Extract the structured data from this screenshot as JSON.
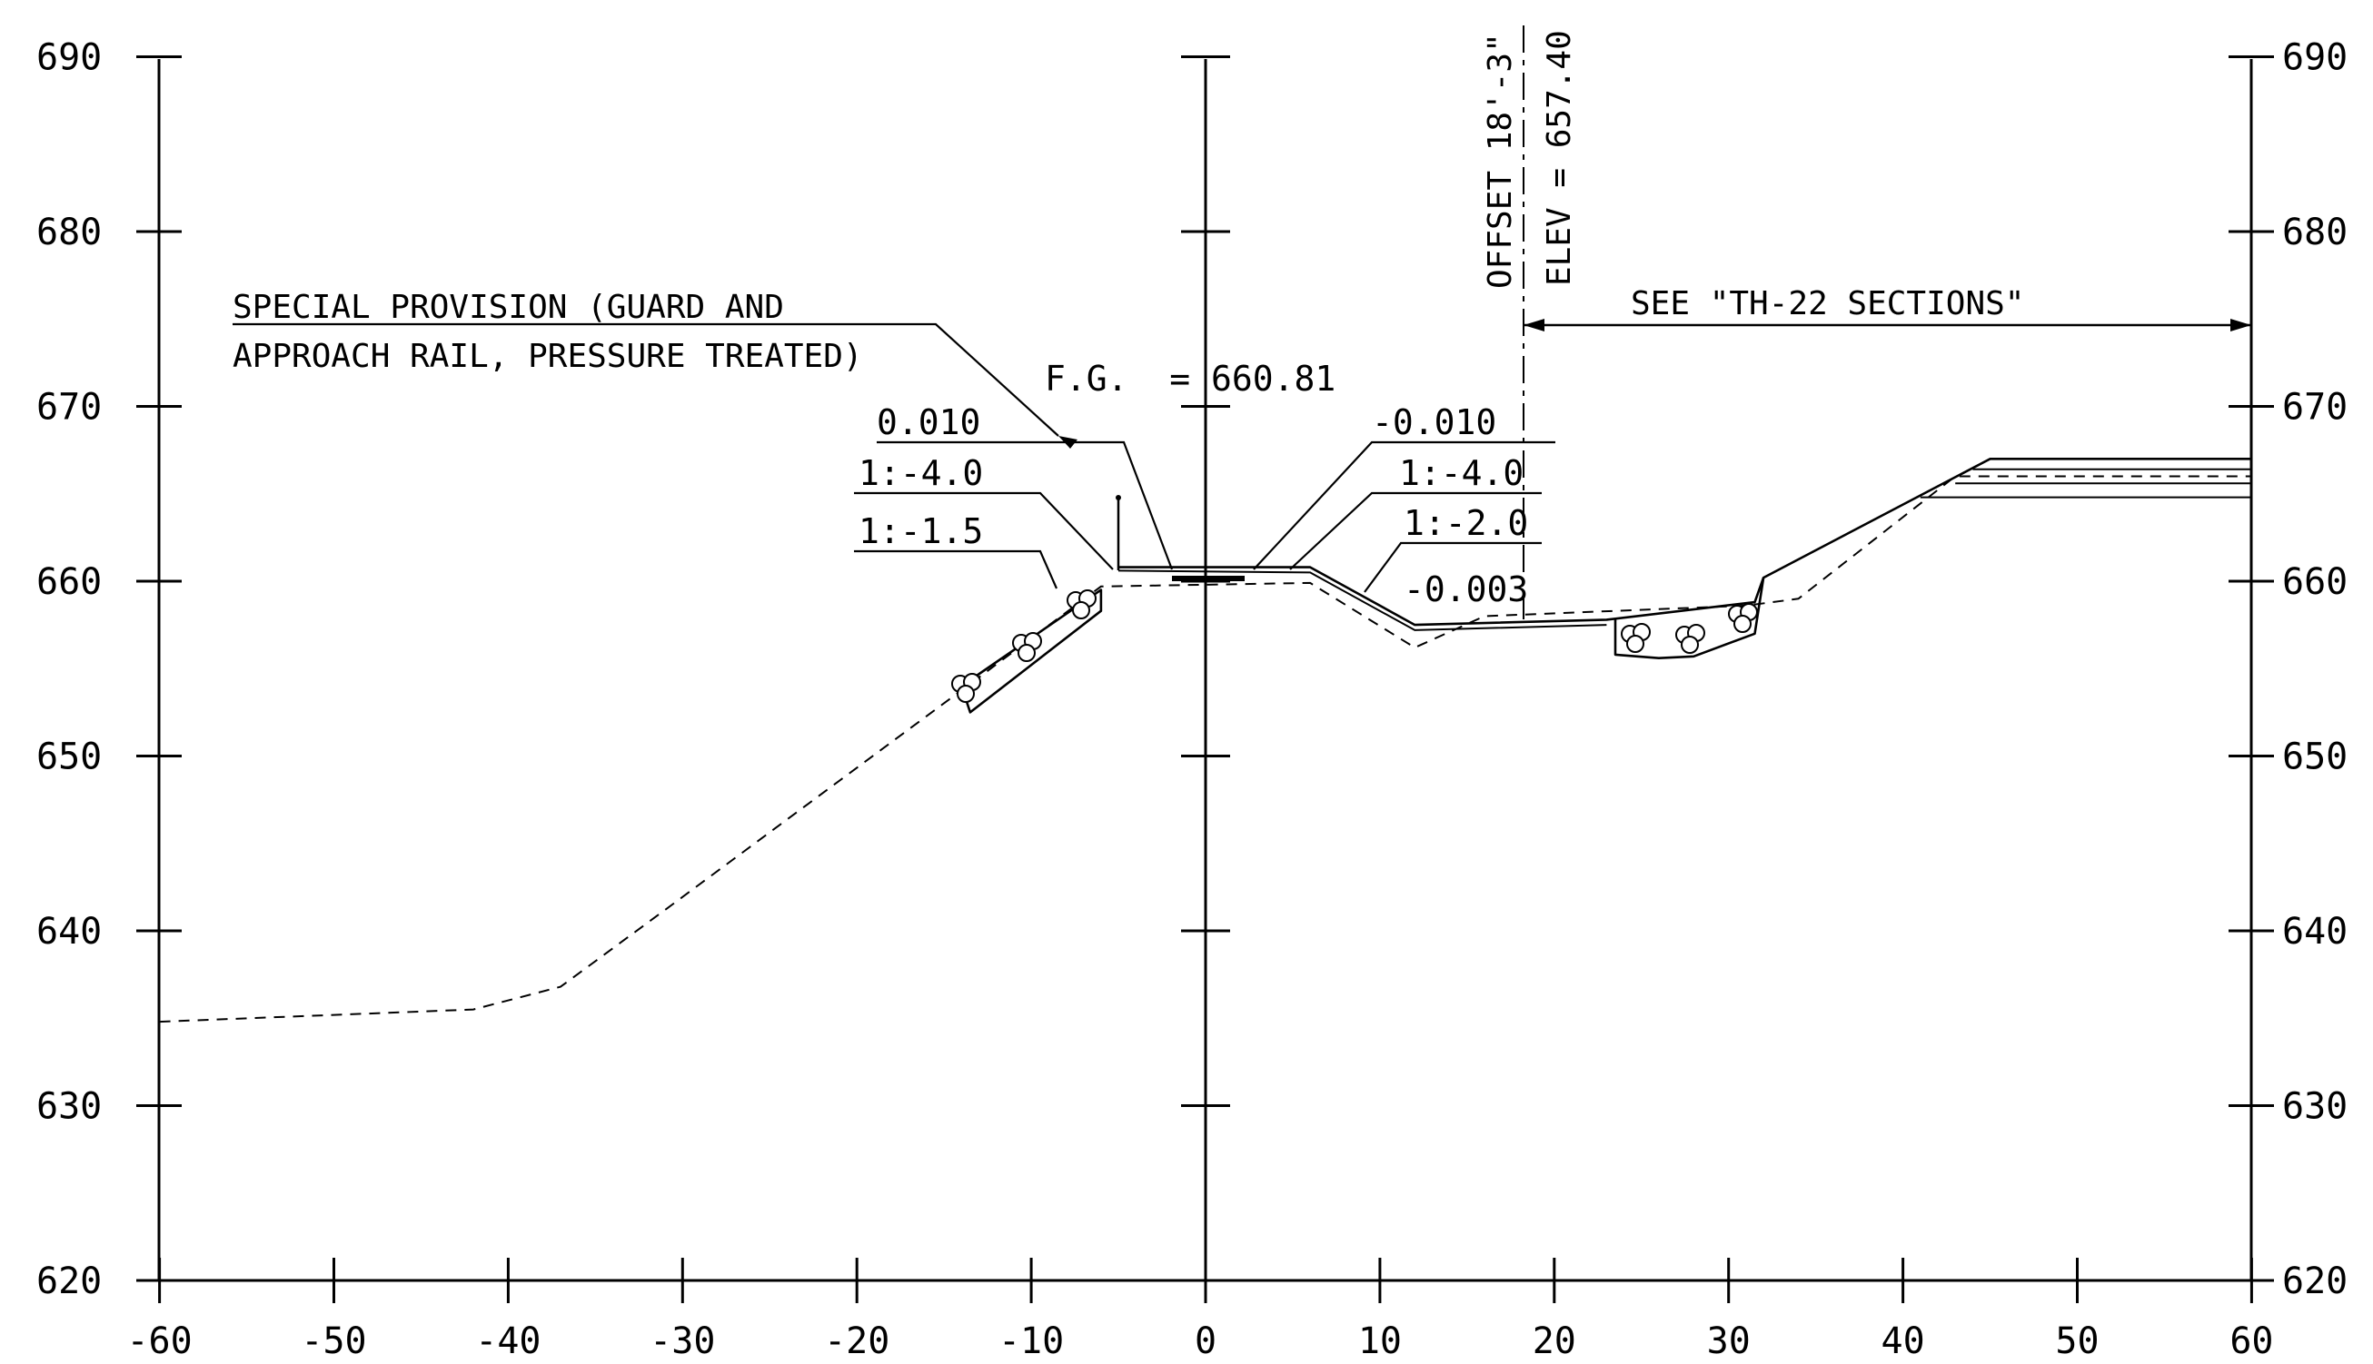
{
  "axes": {
    "x_ticks": [
      "-60",
      "-50",
      "-40",
      "-30",
      "-20",
      "-10",
      "0",
      "10",
      "20",
      "30",
      "40",
      "50",
      "60"
    ],
    "y_ticks": [
      "620",
      "630",
      "640",
      "650",
      "660",
      "670",
      "680",
      "690"
    ]
  },
  "labels": {
    "special_provision_1": "SPECIAL PROVISION (GUARD AND",
    "special_provision_2": "APPROACH RAIL, PRESSURE TREATED)",
    "fg": "F.G.  = 660.81",
    "left_slope_1": "0.010",
    "left_slope_2": "1:-4.0",
    "left_slope_3": "1:-1.5",
    "right_slope_1": "-0.010",
    "right_slope_2": "1:-4.0",
    "right_slope_3": "1:-2.0",
    "ditch_slope": "-0.003",
    "offset": "OFFSET 18'-3\"",
    "elev": "ELEV = 657.40",
    "see_sections": "SEE \"TH-22 SECTIONS\""
  },
  "profiles": {
    "existing_ground": [
      [
        -60,
        634.8
      ],
      [
        -42,
        635.5
      ],
      [
        -37,
        636.8
      ],
      [
        -31,
        641.2
      ],
      [
        -13,
        654.5
      ],
      [
        -6,
        659.7
      ],
      [
        6,
        659.9
      ],
      [
        12,
        656.2
      ],
      [
        16,
        658.0
      ],
      [
        31,
        658.6
      ],
      [
        34,
        659.0
      ],
      [
        43,
        666.0
      ],
      [
        60,
        666.0
      ]
    ],
    "finished_grade_top": [
      [
        -5,
        660.8
      ],
      [
        6,
        660.8
      ],
      [
        12,
        657.5
      ],
      [
        23,
        657.8
      ],
      [
        31.5,
        658.8
      ],
      [
        32,
        660.2
      ],
      [
        45,
        667.0
      ],
      [
        60,
        667.0
      ]
    ],
    "finished_grade_layer_2": [
      [
        -5,
        660.6
      ],
      [
        6,
        660.5
      ],
      [
        12,
        657.2
      ],
      [
        23,
        657.5
      ]
    ],
    "finished_grade_layer_3": [
      [
        44,
        666.4
      ],
      [
        60,
        666.4
      ]
    ],
    "finished_grade_layer_4": [
      [
        43,
        665.6
      ],
      [
        60,
        665.6
      ]
    ],
    "finished_grade_layer_5": [
      [
        41,
        664.8
      ],
      [
        60,
        664.8
      ]
    ],
    "left_riprap": [
      [
        -14,
        654.0
      ],
      [
        -6,
        659.5
      ],
      [
        -6,
        658.3
      ],
      [
        -13.5,
        652.5
      ]
    ],
    "ditch_riprap": [
      [
        23.5,
        657.8
      ],
      [
        23.5,
        655.8
      ],
      [
        26,
        655.6
      ],
      [
        28,
        655.7
      ],
      [
        31.5,
        657.0
      ],
      [
        32,
        660.2
      ]
    ]
  },
  "offset_line": {
    "x": 18.25,
    "elevation": 657.4
  }
}
